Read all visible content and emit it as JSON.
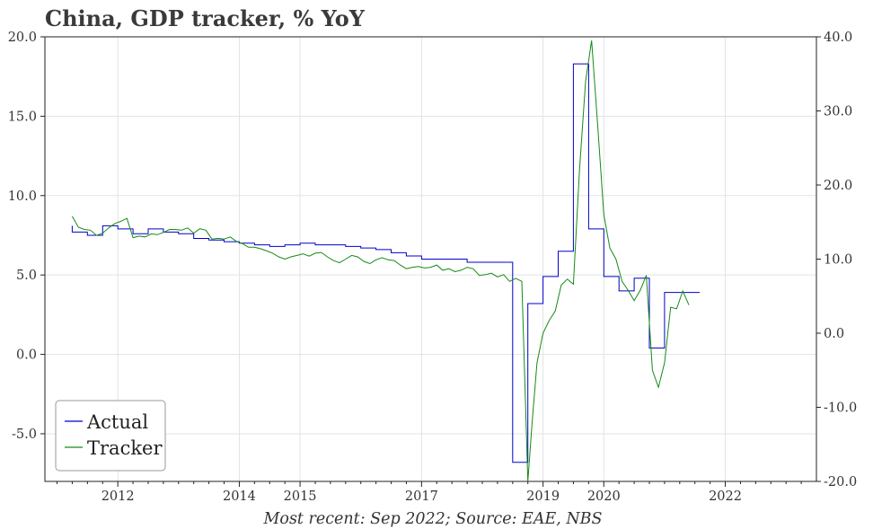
{
  "chart_data": {
    "type": "line",
    "title": "China, GDP tracker, % YoY",
    "caption": "Most recent: Sep 2022; Source: EAE, NBS",
    "xlim": [
      2010.8,
      2023.5
    ],
    "ylim_left": [
      -8,
      20
    ],
    "ylim_right": [
      -20,
      40
    ],
    "x_ticks": [
      2012,
      2014,
      2015,
      2017,
      2019,
      2020,
      2022
    ],
    "x_tick_labels": [
      "2012",
      "2014",
      "2015",
      "2017",
      "2019",
      "2020",
      "2022"
    ],
    "y_left_ticks": [
      20,
      15,
      10,
      5,
      0,
      -5
    ],
    "y_left_tick_labels": [
      "20.0",
      "15.0",
      "10.0",
      "5.0",
      "0.0",
      "-5.0"
    ],
    "y_right_ticks": [
      40,
      30,
      20,
      10,
      0,
      -10,
      -20
    ],
    "y_right_tick_labels": [
      "40.0",
      "30.0",
      "20.0",
      "10.0",
      "0.0",
      "-10.0",
      "-20.0"
    ],
    "legend": {
      "placement": "bottom-left",
      "entries": [
        "Actual",
        "Tracker"
      ]
    },
    "grid": true,
    "series": [
      {
        "name": "Actual",
        "axis": "left",
        "color": "#0000cc",
        "step": true,
        "points": [
          [
            2011.25,
            8.1
          ],
          [
            2011.5,
            7.7
          ],
          [
            2011.75,
            7.5
          ],
          [
            2012.0,
            8.1
          ],
          [
            2012.25,
            7.9
          ],
          [
            2012.5,
            7.6
          ],
          [
            2012.75,
            7.9
          ],
          [
            2013.0,
            7.7
          ],
          [
            2013.25,
            7.6
          ],
          [
            2013.5,
            7.3
          ],
          [
            2013.75,
            7.2
          ],
          [
            2014.0,
            7.1
          ],
          [
            2014.25,
            7.0
          ],
          [
            2014.5,
            6.9
          ],
          [
            2014.75,
            6.8
          ],
          [
            2015.0,
            6.9
          ],
          [
            2015.25,
            7.0
          ],
          [
            2015.5,
            6.9
          ],
          [
            2015.75,
            6.9
          ],
          [
            2016.0,
            6.8
          ],
          [
            2016.25,
            6.7
          ],
          [
            2016.5,
            6.6
          ],
          [
            2016.75,
            6.4
          ],
          [
            2017.0,
            6.2
          ],
          [
            2017.25,
            6.0
          ],
          [
            2017.5,
            6.0
          ],
          [
            2017.75,
            6.0
          ],
          [
            2018.0,
            5.8
          ],
          [
            2018.25,
            5.8
          ],
          [
            2018.5,
            5.8
          ],
          [
            2018.75,
            -6.8
          ],
          [
            2019.0,
            3.2
          ],
          [
            2019.25,
            4.9
          ],
          [
            2019.5,
            6.5
          ],
          [
            2019.75,
            18.3
          ],
          [
            2020.0,
            7.9
          ],
          [
            2020.25,
            4.9
          ],
          [
            2020.5,
            4.0
          ],
          [
            2020.75,
            4.8
          ],
          [
            2021.0,
            0.4
          ],
          [
            2021.25,
            3.9
          ],
          [
            2021.58,
            3.9
          ]
        ]
      },
      {
        "name": "Tracker",
        "axis": "right",
        "color": "#158a15",
        "step": false,
        "points": [
          [
            2011.25,
            15.8
          ],
          [
            2011.35,
            14.3
          ],
          [
            2011.45,
            14.0
          ],
          [
            2011.55,
            13.9
          ],
          [
            2011.65,
            13.2
          ],
          [
            2011.75,
            13.5
          ],
          [
            2011.85,
            14.2
          ],
          [
            2011.95,
            14.8
          ],
          [
            2012.05,
            15.1
          ],
          [
            2012.15,
            15.5
          ],
          [
            2012.25,
            12.9
          ],
          [
            2012.35,
            13.1
          ],
          [
            2012.45,
            13.0
          ],
          [
            2012.55,
            13.4
          ],
          [
            2012.65,
            13.3
          ],
          [
            2012.75,
            13.6
          ],
          [
            2012.85,
            14.0
          ],
          [
            2012.95,
            14.0
          ],
          [
            2013.05,
            13.9
          ],
          [
            2013.15,
            14.2
          ],
          [
            2013.25,
            13.5
          ],
          [
            2013.35,
            14.1
          ],
          [
            2013.45,
            13.9
          ],
          [
            2013.55,
            12.7
          ],
          [
            2013.65,
            12.8
          ],
          [
            2013.75,
            12.7
          ],
          [
            2013.85,
            13.0
          ],
          [
            2013.95,
            12.4
          ],
          [
            2014.05,
            12.1
          ],
          [
            2014.15,
            11.6
          ],
          [
            2014.25,
            11.6
          ],
          [
            2014.35,
            11.4
          ],
          [
            2014.45,
            11.1
          ],
          [
            2014.55,
            10.8
          ],
          [
            2014.65,
            10.3
          ],
          [
            2014.75,
            10.0
          ],
          [
            2014.85,
            10.3
          ],
          [
            2014.95,
            10.5
          ],
          [
            2015.05,
            10.7
          ],
          [
            2015.15,
            10.4
          ],
          [
            2015.25,
            10.8
          ],
          [
            2015.35,
            10.9
          ],
          [
            2015.45,
            10.3
          ],
          [
            2015.55,
            9.8
          ],
          [
            2015.65,
            9.5
          ],
          [
            2015.75,
            10.0
          ],
          [
            2015.85,
            10.5
          ],
          [
            2015.95,
            10.3
          ],
          [
            2016.05,
            9.7
          ],
          [
            2016.15,
            9.4
          ],
          [
            2016.25,
            9.9
          ],
          [
            2016.35,
            10.2
          ],
          [
            2016.45,
            9.9
          ],
          [
            2016.55,
            9.8
          ],
          [
            2016.65,
            9.2
          ],
          [
            2016.75,
            8.7
          ],
          [
            2016.85,
            8.9
          ],
          [
            2016.95,
            9.0
          ],
          [
            2017.05,
            8.8
          ],
          [
            2017.15,
            8.9
          ],
          [
            2017.25,
            9.2
          ],
          [
            2017.35,
            8.5
          ],
          [
            2017.45,
            8.7
          ],
          [
            2017.55,
            8.3
          ],
          [
            2017.65,
            8.5
          ],
          [
            2017.75,
            8.9
          ],
          [
            2017.85,
            8.7
          ],
          [
            2017.95,
            7.8
          ],
          [
            2018.05,
            7.9
          ],
          [
            2018.15,
            8.1
          ],
          [
            2018.25,
            7.6
          ],
          [
            2018.35,
            7.9
          ],
          [
            2018.45,
            7.0
          ],
          [
            2018.55,
            7.4
          ],
          [
            2018.65,
            7.0
          ],
          [
            2018.75,
            -20.0
          ],
          [
            2018.82,
            -12.0
          ],
          [
            2018.9,
            -4.0
          ],
          [
            2019.0,
            0.0
          ],
          [
            2019.1,
            1.7
          ],
          [
            2019.2,
            3.0
          ],
          [
            2019.3,
            6.5
          ],
          [
            2019.4,
            7.3
          ],
          [
            2019.5,
            6.6
          ],
          [
            2019.6,
            22.0
          ],
          [
            2019.7,
            34.0
          ],
          [
            2019.8,
            39.5
          ],
          [
            2019.9,
            28.0
          ],
          [
            2020.0,
            16.0
          ],
          [
            2020.1,
            11.5
          ],
          [
            2020.2,
            10.0
          ],
          [
            2020.3,
            7.0
          ],
          [
            2020.4,
            5.8
          ],
          [
            2020.5,
            4.4
          ],
          [
            2020.6,
            5.8
          ],
          [
            2020.7,
            7.8
          ],
          [
            2020.8,
            -5.0
          ],
          [
            2020.9,
            -7.3
          ],
          [
            2021.0,
            -4.0
          ],
          [
            2021.1,
            3.5
          ],
          [
            2021.2,
            3.3
          ],
          [
            2021.3,
            5.7
          ],
          [
            2021.4,
            3.8
          ]
        ]
      }
    ]
  }
}
